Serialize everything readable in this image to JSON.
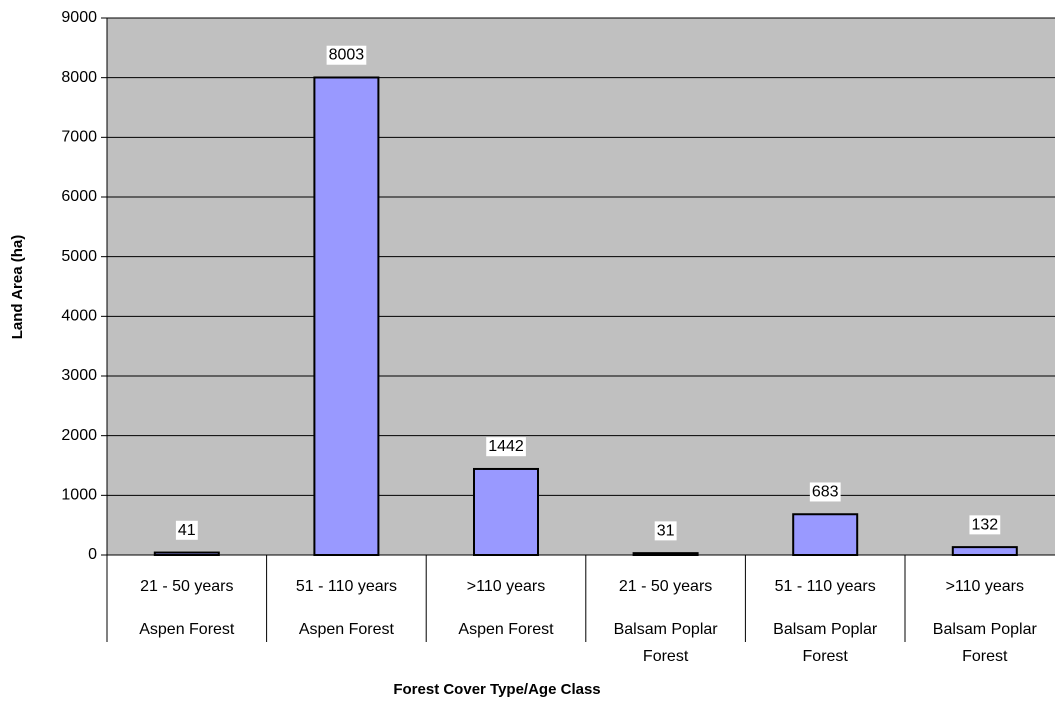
{
  "chart_data": {
    "type": "bar",
    "x_label": "Forest Cover Type/Age Class",
    "y_label": "Land Area (ha)",
    "categories": [
      "21 - 50 years",
      "51 - 110 years",
      ">110 years",
      "21 - 50 years",
      "51 - 110 years",
      ">110 years"
    ],
    "category_groups": [
      "Aspen Forest",
      "Aspen Forest",
      "Aspen Forest",
      "Balsam Poplar Forest",
      "Balsam Poplar Forest",
      "Balsam Poplar Forest"
    ],
    "values": [
      41,
      8003,
      1442,
      31,
      683,
      132
    ],
    "color": "#9999ff",
    "ylim": [
      0,
      9000
    ],
    "yticks": [
      0,
      1000,
      2000,
      3000,
      4000,
      5000,
      6000,
      7000,
      8000,
      9000
    ],
    "grid": true
  }
}
